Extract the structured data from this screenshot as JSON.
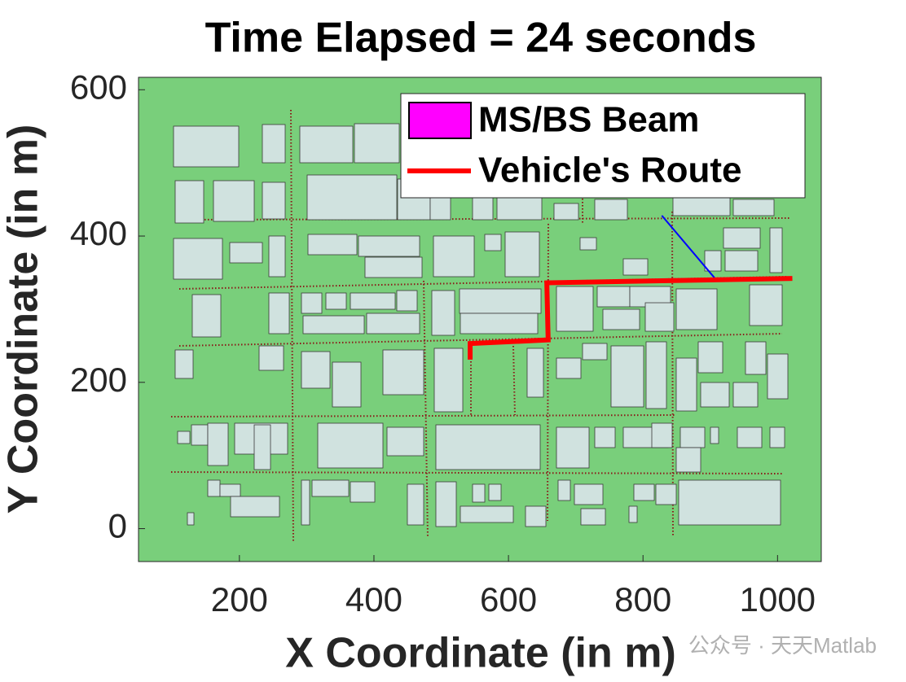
{
  "chart_data": {
    "type": "line",
    "title": "Time Elapsed = 24 seconds",
    "xlabel": "X Coordinate (in m)",
    "ylabel": "Y Coordinate (in m)",
    "xlim": [
      50,
      1065
    ],
    "ylim": [
      -45,
      617
    ],
    "xticks": [
      200,
      400,
      600,
      800,
      1000
    ],
    "yticks": [
      0,
      200,
      400,
      600
    ],
    "legend": "upper right",
    "series": [
      {
        "name": "MS/BS Beam",
        "color": "#ff00ff",
        "line_color": "#0000ff",
        "x": [
          828,
          908
        ],
        "values": [
          428,
          341
        ]
      },
      {
        "name": "Vehicle's Route",
        "color": "#ff0000",
        "x": [
          543,
          543,
          659,
          657,
          1022
        ],
        "values": [
          231,
          253,
          258,
          336,
          342
        ]
      }
    ]
  },
  "watermark": "公众号 · 天天Matlab"
}
